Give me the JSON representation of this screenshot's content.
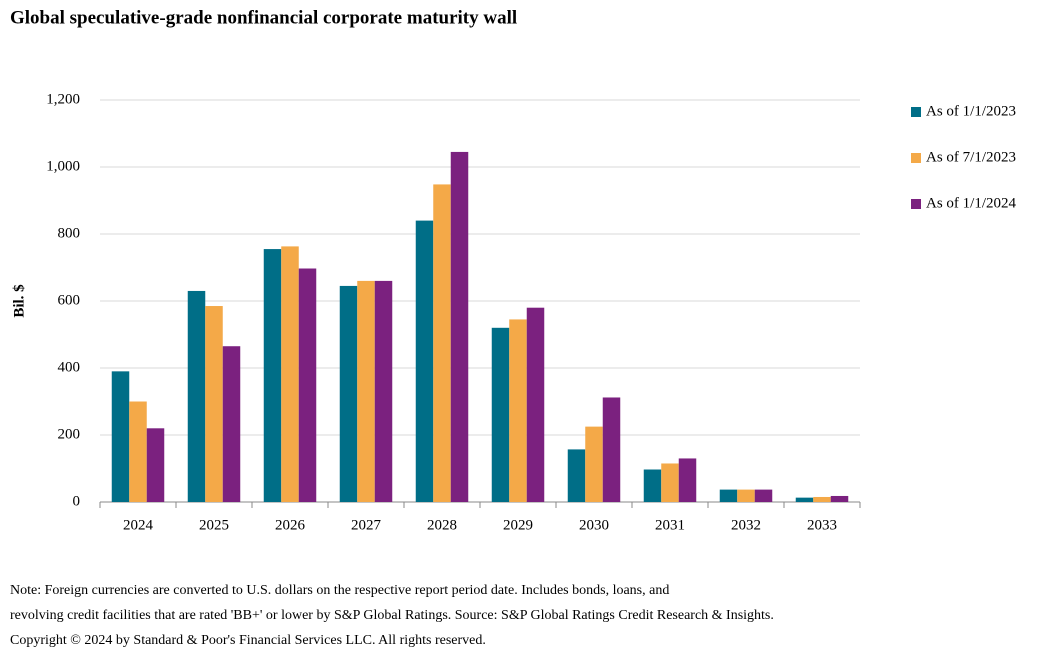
{
  "chart_data": {
    "type": "bar",
    "title": "Global speculative-grade nonfinancial corporate maturity wall",
    "y_label": "Bil. $",
    "categories": [
      "2024",
      "2025",
      "2026",
      "2027",
      "2028",
      "2029",
      "2030",
      "2031",
      "2032",
      "2033"
    ],
    "series": [
      {
        "name": "As of 1/1/2023",
        "color": "#006e87",
        "values": [
          390,
          630,
          755,
          645,
          840,
          520,
          157,
          97,
          37,
          13
        ]
      },
      {
        "name": "As of 7/1/2023",
        "color": "#f4a948",
        "values": [
          300,
          585,
          763,
          660,
          948,
          545,
          225,
          115,
          37,
          15
        ]
      },
      {
        "name": "As of 1/1/2024",
        "color": "#7b217f",
        "values": [
          220,
          465,
          697,
          660,
          1045,
          580,
          312,
          130,
          37,
          18
        ]
      }
    ],
    "ylim": [
      0,
      1200
    ],
    "yticks": [
      0,
      200,
      400,
      600,
      800,
      {
        "value": 1000,
        "label": "1,000"
      },
      {
        "value": 1200,
        "label": "1,200"
      }
    ],
    "grid": true,
    "legend": "right",
    "notes": [
      "Note: Foreign currencies are converted to U.S. dollars on the respective report period date. Includes bonds, loans, and",
      "revolving credit facilities that are rated 'BB+' or lower by S&P Global Ratings. Source: S&P Global Ratings Credit Research & Insights.",
      "Copyright © 2024 by Standard & Poor's Financial Services LLC. All rights reserved."
    ]
  }
}
